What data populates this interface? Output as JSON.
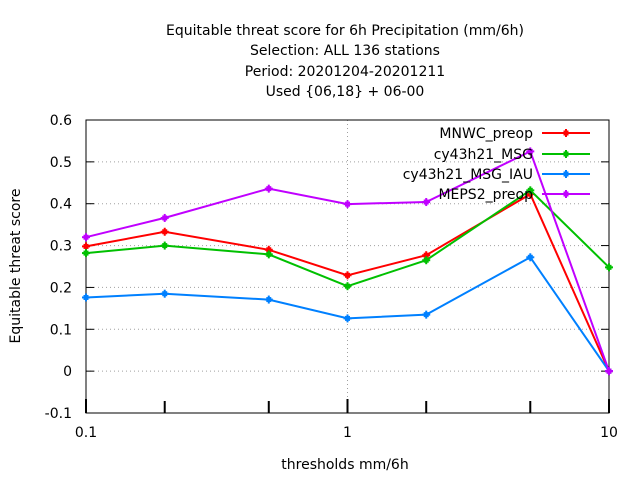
{
  "chart_data": {
    "type": "line",
    "title_lines": [
      "Equitable threat score  for 6h Precipitation (mm/6h)",
      "Selection: ALL    136 stations",
      "Period: 20201204-20201211",
      "Used {06,18} + 06-00"
    ],
    "xlabel": "thresholds mm/6h",
    "ylabel": "Equitable threat score",
    "x_scale": "log",
    "xlim": [
      0.1,
      10
    ],
    "ylim": [
      -0.1,
      0.6
    ],
    "x_ticks": [
      {
        "value": 0.1,
        "label": "0.1"
      },
      {
        "value": 1,
        "label": "1"
      },
      {
        "value": 10,
        "label": "10"
      }
    ],
    "x_minor_ticks": [
      0.2,
      0.5,
      2,
      5
    ],
    "y_ticks": [
      {
        "value": -0.1,
        "label": "-0.1"
      },
      {
        "value": 0,
        "label": "0"
      },
      {
        "value": 0.1,
        "label": "0.1"
      },
      {
        "value": 0.2,
        "label": "0.2"
      },
      {
        "value": 0.3,
        "label": "0.3"
      },
      {
        "value": 0.4,
        "label": "0.4"
      },
      {
        "value": 0.5,
        "label": "0.5"
      },
      {
        "value": 0.6,
        "label": "0.6"
      }
    ],
    "grid": true,
    "legend_position": "top-right",
    "x": [
      0.1,
      0.2,
      0.5,
      1,
      2,
      5,
      10
    ],
    "series": [
      {
        "name": "MNWC_preop",
        "color": "#ff0000",
        "values": [
          0.298,
          0.333,
          0.29,
          0.229,
          0.277,
          0.423,
          0.0
        ]
      },
      {
        "name": "cy43h21_MSG",
        "color": "#00c000",
        "values": [
          0.282,
          0.3,
          0.279,
          0.203,
          0.265,
          0.432,
          0.248
        ]
      },
      {
        "name": "cy43h21_MSG_IAU",
        "color": "#0080ff",
        "values": [
          0.176,
          0.185,
          0.171,
          0.126,
          0.135,
          0.272,
          0.0
        ]
      },
      {
        "name": "MEPS2_preop",
        "color": "#c000ff",
        "values": [
          0.32,
          0.366,
          0.436,
          0.399,
          0.404,
          0.525,
          0.0
        ]
      }
    ]
  }
}
